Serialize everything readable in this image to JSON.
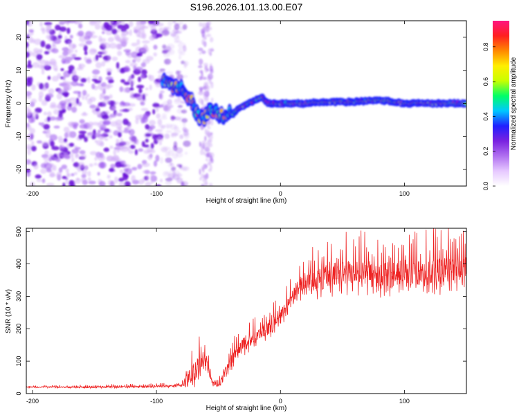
{
  "figure_title": "S196.2026.101.13.00.E07",
  "chart_data": [
    {
      "type": "heatmap",
      "title": "S196.2026.101.13.00.E07",
      "xlabel": "Height of straight line (km)",
      "ylabel": "Frequency (Hz)",
      "xlim": [
        -205,
        150
      ],
      "ylim": [
        -25,
        25
      ],
      "xticks": [
        -200,
        -100,
        0,
        100
      ],
      "yticks": [
        -20,
        -10,
        0,
        10,
        20
      ],
      "colorbar": {
        "label": "Normalized spectral amplitude",
        "range": [
          0.0,
          0.95
        ],
        "ticks": [
          0.0,
          0.2,
          0.4,
          0.6,
          0.8
        ],
        "colormap": [
          "#ffffff",
          "#e6c8ff",
          "#b070f0",
          "#7a22e0",
          "#2020ff",
          "#00c8ff",
          "#00ff66",
          "#c8ff00",
          "#ffee00",
          "#ff8800",
          "#ff2020",
          "#ff1480"
        ]
      },
      "regions": [
        {
          "name": "noise",
          "x_range": [
            -205,
            -82
          ],
          "f_range": [
            -25,
            25
          ],
          "amplitude": 0.08
        },
        {
          "name": "noise-strip",
          "x_range": [
            -65,
            -55
          ],
          "f_range": [
            -25,
            25
          ],
          "amplitude": 0.04
        },
        {
          "name": "carrier-ridge",
          "x_range": [
            -90,
            150
          ],
          "amplitude_range": [
            0.3,
            0.9
          ]
        }
      ],
      "carrier_track": {
        "x": [
          -95,
          -85,
          -78,
          -72,
          -68,
          -62,
          -56,
          -50,
          -44,
          -38,
          -32,
          -26,
          -20,
          -15,
          -10,
          -5,
          0,
          20,
          40,
          60,
          80,
          90,
          100,
          120,
          140,
          150
        ],
        "f": [
          7,
          5,
          4,
          1,
          -3,
          -5,
          -2,
          -3,
          -4,
          -3,
          -1,
          0,
          1,
          2,
          0,
          0,
          0,
          0,
          0.5,
          0.5,
          1,
          0.5,
          0,
          0,
          0,
          0
        ]
      }
    },
    {
      "type": "line",
      "xlabel": "Height of straight line (km)",
      "ylabel": "SNR (10 * v/v)",
      "xlim": [
        -205,
        150
      ],
      "ylim": [
        0,
        510
      ],
      "xticks": [
        -200,
        -100,
        0,
        100
      ],
      "yticks": [
        0,
        100,
        200,
        300,
        400,
        500
      ],
      "series": [
        {
          "name": "SNR",
          "color": "#ee2222",
          "x": [
            -205,
            -150,
            -100,
            -80,
            -75,
            -70,
            -65,
            -60,
            -55,
            -50,
            -45,
            -40,
            -35,
            -30,
            -25,
            -20,
            -15,
            -10,
            -5,
            0,
            5,
            10,
            15,
            20,
            30,
            40,
            60,
            80,
            100,
            120,
            140,
            150
          ],
          "y": [
            20,
            20,
            22,
            25,
            45,
            70,
            90,
            100,
            35,
            25,
            60,
            100,
            125,
            150,
            160,
            175,
            190,
            205,
            215,
            235,
            265,
            300,
            330,
            345,
            355,
            365,
            370,
            365,
            375,
            370,
            380,
            385
          ],
          "spike_amplitude": [
            5,
            8,
            10,
            12,
            80,
            110,
            100,
            60,
            25,
            20,
            50,
            60,
            70,
            70,
            70,
            75,
            75,
            80,
            80,
            70,
            70,
            75,
            90,
            110,
            130,
            140,
            140,
            140,
            140,
            140,
            140,
            140
          ]
        }
      ]
    }
  ]
}
